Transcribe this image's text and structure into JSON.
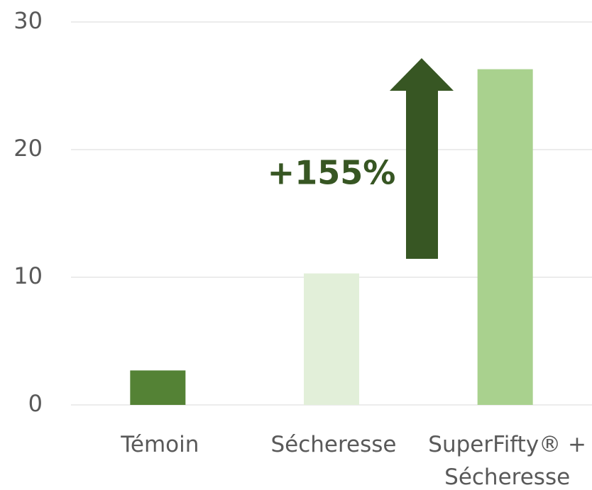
{
  "chart_data": {
    "type": "bar",
    "categories": [
      "Témoin",
      "Sécheresse",
      "SuperFifty® + Sécheresse"
    ],
    "values": [
      2.7,
      10.3,
      26.3
    ],
    "colors": [
      "#548235",
      "#e2efd9",
      "#a9d18e"
    ],
    "ylim": [
      0,
      30
    ],
    "yticks": [
      0,
      10,
      20,
      30
    ],
    "grid": true,
    "annotation": "+155%"
  }
}
